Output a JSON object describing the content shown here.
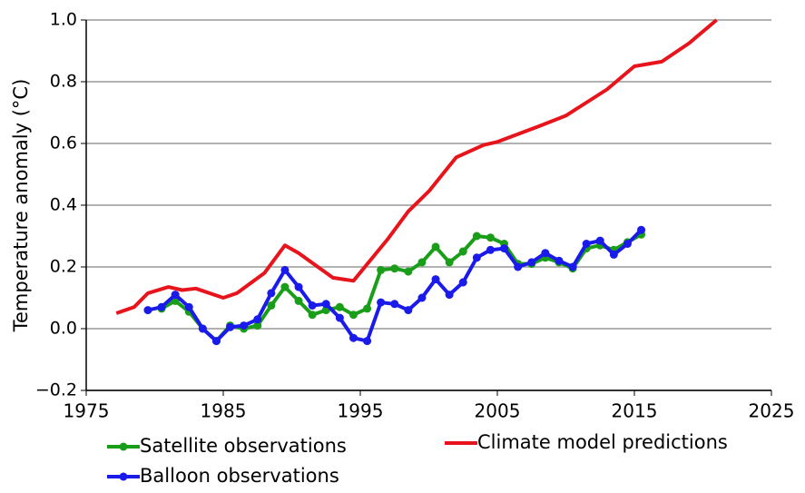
{
  "chart_data": {
    "type": "line",
    "ylabel": "Temperature anomaly (°C)",
    "xlim": [
      1975,
      2025
    ],
    "xticks": [
      1975,
      1985,
      1995,
      2005,
      2015,
      2025
    ],
    "ylim": [
      -0.2,
      1.0
    ],
    "yticks": [
      {
        "value": -0.2,
        "label": "−0.2"
      },
      {
        "value": 0,
        "label": "0.0"
      },
      {
        "value": 0.2,
        "label": "0.2"
      },
      {
        "value": 0.4,
        "label": "0.4"
      },
      {
        "value": 0.6,
        "label": "0.6"
      },
      {
        "value": 0.8,
        "label": "0.8"
      },
      {
        "value": 1.0,
        "label": "1.0"
      }
    ],
    "grid": true,
    "series": [
      {
        "name": "Satellite observations",
        "color": "#1a9e1a",
        "markers": true,
        "x": [
          1980.5,
          1981.5,
          1982.5,
          1983.5,
          1984.5,
          1985.5,
          1986.5,
          1987.5,
          1988.5,
          1989.5,
          1990.5,
          1991.5,
          1992.5,
          1993.5,
          1994.5,
          1995.5,
          1996.5,
          1997.5,
          1998.5,
          1999.5,
          2000.5,
          2001.5,
          2002.5,
          2003.5,
          2004.5,
          2005.5,
          2006.5,
          2007.5,
          2008.5,
          2009.5,
          2010.5,
          2011.5,
          2012.5,
          2013.5,
          2014.5,
          2015.5
        ],
        "values": [
          0.065,
          0.09,
          0.055,
          0.0,
          -0.04,
          0.01,
          0.0,
          0.01,
          0.075,
          0.135,
          0.09,
          0.045,
          0.06,
          0.07,
          0.045,
          0.065,
          0.19,
          0.195,
          0.185,
          0.215,
          0.265,
          0.215,
          0.25,
          0.3,
          0.295,
          0.275,
          0.21,
          0.21,
          0.23,
          0.215,
          0.195,
          0.26,
          0.27,
          0.255,
          0.28,
          0.305
        ]
      },
      {
        "name": "Climate model predictions",
        "color": "#e8141c",
        "markers": false,
        "x": [
          1977.2,
          1978.5,
          1979.5,
          1981,
          1982,
          1983,
          1985,
          1986,
          1988,
          1989.5,
          1990.5,
          1993,
          1994.5,
          1997,
          1998.5,
          2000,
          2002,
          2004,
          2005,
          2008,
          2010,
          2013,
          2015,
          2017,
          2019,
          2021
        ],
        "values": [
          0.05,
          0.07,
          0.115,
          0.135,
          0.125,
          0.13,
          0.1,
          0.115,
          0.18,
          0.27,
          0.245,
          0.165,
          0.155,
          0.29,
          0.38,
          0.445,
          0.555,
          0.595,
          0.605,
          0.655,
          0.69,
          0.775,
          0.85,
          0.865,
          0.925,
          1.0
        ]
      },
      {
        "name": "Balloon observations",
        "color": "#1a1aeb",
        "markers": true,
        "x": [
          1979.5,
          1980.5,
          1981.5,
          1982.5,
          1983.5,
          1984.5,
          1985.5,
          1986.5,
          1987.5,
          1988.5,
          1989.5,
          1990.5,
          1991.5,
          1992.5,
          1993.5,
          1994.5,
          1995.5,
          1996.5,
          1997.5,
          1998.5,
          1999.5,
          2000.5,
          2001.5,
          2002.5,
          2003.5,
          2004.5,
          2005.5,
          2006.5,
          2007.5,
          2008.5,
          2009.5,
          2010.5,
          2011.5,
          2012.5,
          2013.5,
          2014.5,
          2015.5
        ],
        "values": [
          0.06,
          0.07,
          0.11,
          0.07,
          0.0,
          -0.04,
          0.005,
          0.01,
          0.03,
          0.115,
          0.19,
          0.135,
          0.075,
          0.08,
          0.035,
          -0.03,
          -0.04,
          0.085,
          0.08,
          0.06,
          0.1,
          0.16,
          0.11,
          0.15,
          0.23,
          0.255,
          0.26,
          0.2,
          0.215,
          0.245,
          0.22,
          0.2,
          0.275,
          0.285,
          0.24,
          0.275,
          0.32
        ]
      }
    ]
  }
}
